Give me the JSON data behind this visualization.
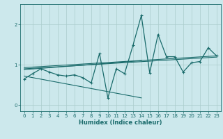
{
  "xlabel": "Humidex (Indice chaleur)",
  "bg_color": "#cce8ec",
  "grid_color": "#aacccc",
  "line_color": "#1a6b6b",
  "xlim": [
    -0.5,
    23.5
  ],
  "ylim": [
    -0.15,
    2.5
  ],
  "xticks": [
    0,
    1,
    2,
    3,
    4,
    5,
    6,
    7,
    8,
    9,
    10,
    11,
    12,
    13,
    14,
    15,
    16,
    17,
    18,
    19,
    20,
    21,
    22,
    23
  ],
  "yticks": [
    0,
    1,
    2
  ],
  "main_x": [
    0,
    1,
    2,
    3,
    4,
    5,
    6,
    7,
    8,
    9,
    10,
    11,
    12,
    13,
    14,
    15,
    16,
    17,
    18,
    19,
    20,
    21,
    22,
    23
  ],
  "main_y": [
    0.65,
    0.78,
    0.9,
    0.82,
    0.75,
    0.72,
    0.75,
    0.68,
    0.55,
    1.28,
    0.18,
    0.9,
    0.78,
    1.48,
    2.22,
    0.8,
    1.75,
    1.2,
    1.2,
    0.82,
    1.05,
    1.08,
    1.42,
    1.22
  ],
  "trend1_x": [
    0,
    23
  ],
  "trend1_y": [
    0.93,
    1.22
  ],
  "trend2_x": [
    0,
    23
  ],
  "trend2_y": [
    0.9,
    1.19
  ],
  "trend3_x": [
    0,
    14
  ],
  "trend3_y": [
    0.88,
    1.1
  ],
  "trend4_x": [
    0,
    14
  ],
  "trend4_y": [
    0.72,
    0.18
  ]
}
